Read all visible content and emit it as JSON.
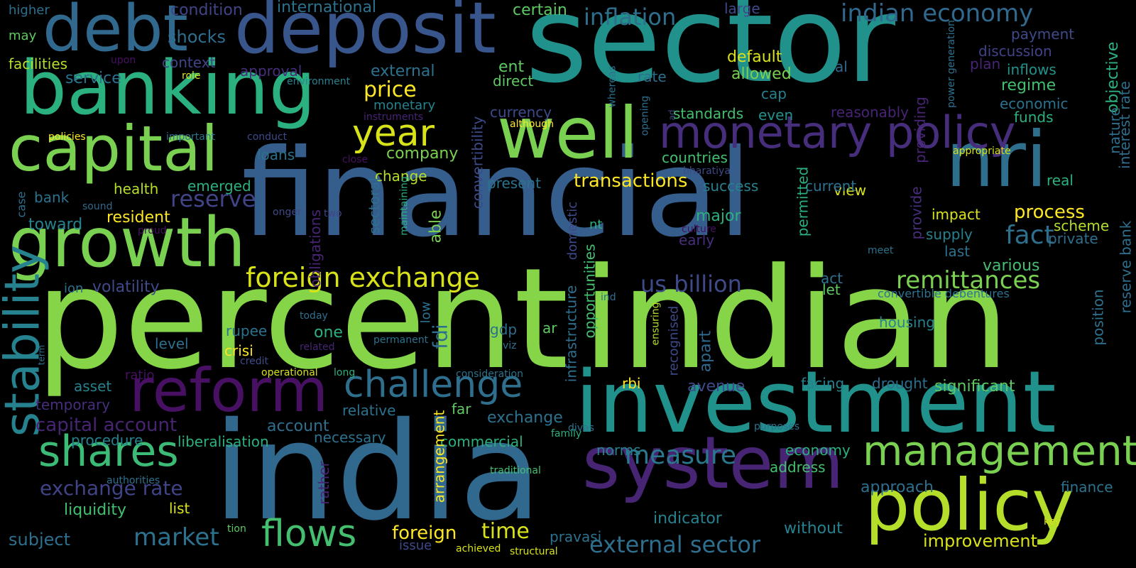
{
  "palette": {
    "background": "#000000",
    "dark_purple": "#471D6E",
    "purple": "#472E7C",
    "indigo": "#404387",
    "blue": "#355E8D",
    "steel": "#2E6F8E",
    "teal": "#21918C",
    "green_teal": "#2BB07F",
    "green": "#44BF70",
    "lime": "#7AD151",
    "yellow_green": "#B5DE2B",
    "yellow": "#FDE725"
  },
  "words": [
    {
      "text": "sector",
      "color": "#21918C",
      "orientation": "horizontal"
    },
    {
      "text": "financial",
      "color": "#355E8D",
      "orientation": "horizontal"
    },
    {
      "text": "percent",
      "color": "#86D549",
      "orientation": "horizontal"
    },
    {
      "text": "indian",
      "color": "#86D549",
      "orientation": "horizontal"
    },
    {
      "text": "india",
      "color": "#31688E",
      "orientation": "horizontal"
    },
    {
      "text": "investment",
      "color": "#21918C",
      "orientation": "horizontal"
    },
    {
      "text": "system",
      "color": "#482475",
      "orientation": "horizontal"
    },
    {
      "text": "policy",
      "color": "#B5DE2B",
      "orientation": "horizontal"
    },
    {
      "text": "deposit",
      "color": "#39568C",
      "orientation": "horizontal"
    },
    {
      "text": "banking",
      "color": "#2BB07F",
      "orientation": "horizontal"
    },
    {
      "text": "debt",
      "color": "#31688E",
      "orientation": "horizontal"
    },
    {
      "text": "growth",
      "color": "#7AD151",
      "orientation": "horizontal"
    },
    {
      "text": "capital",
      "color": "#7AD151",
      "orientation": "horizontal"
    },
    {
      "text": "well",
      "color": "#7AD151",
      "orientation": "horizontal"
    },
    {
      "text": "nri",
      "color": "#2E6F8E",
      "orientation": "horizontal"
    },
    {
      "text": "reform",
      "color": "#471063",
      "orientation": "horizontal"
    },
    {
      "text": "monetary policy",
      "color": "#472E7C",
      "orientation": "horizontal"
    },
    {
      "text": "challenge",
      "color": "#2E6F8E",
      "orientation": "horizontal"
    },
    {
      "text": "management",
      "color": "#7AD151",
      "orientation": "horizontal"
    },
    {
      "text": "stability",
      "color": "#26828E",
      "orientation": "vertical"
    },
    {
      "text": "shares",
      "color": "#3BBB75",
      "orientation": "horizontal"
    },
    {
      "text": "year",
      "color": "#D8E219",
      "orientation": "horizontal"
    },
    {
      "text": "foreign exchange",
      "color": "#D8E219",
      "orientation": "horizontal"
    },
    {
      "text": "flows",
      "color": "#44BF70",
      "orientation": "horizontal"
    },
    {
      "text": "remittances",
      "color": "#7AD151",
      "orientation": "horizontal"
    },
    {
      "text": "measure",
      "color": "#2A788E",
      "orientation": "horizontal"
    },
    {
      "text": "us billion",
      "color": "#3E4A89",
      "orientation": "horizontal"
    },
    {
      "text": "indian economy",
      "color": "#31688E",
      "orientation": "horizontal"
    },
    {
      "text": "inflation",
      "color": "#2E6F8E",
      "orientation": "horizontal"
    },
    {
      "text": "external sector",
      "color": "#2E6F8E",
      "orientation": "horizontal"
    },
    {
      "text": "exchange rate",
      "color": "#404387",
      "orientation": "horizontal"
    },
    {
      "text": "market",
      "color": "#2C728E",
      "orientation": "horizontal"
    },
    {
      "text": "capital account",
      "color": "#482475",
      "orientation": "horizontal"
    },
    {
      "text": "time",
      "color": "#D8E219",
      "orientation": "horizontal"
    },
    {
      "text": "reserve",
      "color": "#414487",
      "orientation": "horizontal"
    },
    {
      "text": "transactions",
      "color": "#FDE725",
      "orientation": "horizontal"
    },
    {
      "text": "price",
      "color": "#FDE725",
      "orientation": "horizontal"
    },
    {
      "text": "process",
      "color": "#FDE725",
      "orientation": "horizontal"
    },
    {
      "text": "fact",
      "color": "#2E6F8E",
      "orientation": "horizontal"
    },
    {
      "text": "improvement",
      "color": "#D8E219",
      "orientation": "horizontal"
    },
    {
      "text": "higher",
      "color": "#2E6F8E",
      "orientation": "horizontal"
    },
    {
      "text": "condition",
      "color": "#414487",
      "orientation": "horizontal"
    },
    {
      "text": "international",
      "color": "#2C728E",
      "orientation": "horizontal"
    },
    {
      "text": "certain",
      "color": "#5EC962",
      "orientation": "horizontal"
    },
    {
      "text": "large",
      "color": "#3E4A89",
      "orientation": "horizontal"
    },
    {
      "text": "shocks",
      "color": "#2E6F8E",
      "orientation": "horizontal"
    },
    {
      "text": "may",
      "color": "#5EC962",
      "orientation": "horizontal"
    },
    {
      "text": "facilities",
      "color": "#B5DE2B",
      "orientation": "horizontal"
    },
    {
      "text": "upon",
      "color": "#471063",
      "orientation": "horizontal"
    },
    {
      "text": "context",
      "color": "#414487",
      "orientation": "horizontal"
    },
    {
      "text": "approval",
      "color": "#472E7C",
      "orientation": "horizontal"
    },
    {
      "text": "external",
      "color": "#2C728E",
      "orientation": "horizontal"
    },
    {
      "text": "ent",
      "color": "#5EC962",
      "orientation": "horizontal"
    },
    {
      "text": "direct",
      "color": "#5EC962",
      "orientation": "horizontal"
    },
    {
      "text": "default",
      "color": "#D8E219",
      "orientation": "horizontal"
    },
    {
      "text": "allowed",
      "color": "#7AD151",
      "orientation": "horizontal"
    },
    {
      "text": "cap",
      "color": "#26828E",
      "orientation": "horizontal"
    },
    {
      "text": "al",
      "color": "#31688E",
      "orientation": "horizontal"
    },
    {
      "text": "payment",
      "color": "#3E4A89",
      "orientation": "horizontal"
    },
    {
      "text": "discussion",
      "color": "#404387",
      "orientation": "horizontal"
    },
    {
      "text": "plan",
      "color": "#482475",
      "orientation": "horizontal"
    },
    {
      "text": "inflows",
      "color": "#21918C",
      "orientation": "horizontal"
    },
    {
      "text": "regime",
      "color": "#44BF70",
      "orientation": "horizontal"
    },
    {
      "text": "economic",
      "color": "#2C728E",
      "orientation": "horizontal"
    },
    {
      "text": "funds",
      "color": "#2BB07F",
      "orientation": "horizontal"
    },
    {
      "text": "service",
      "color": "#2C728E",
      "orientation": "horizontal"
    },
    {
      "text": "role",
      "color": "#D8E219",
      "orientation": "horizontal"
    },
    {
      "text": "environment",
      "color": "#26828E",
      "orientation": "horizontal"
    },
    {
      "text": "monetary",
      "color": "#26828E",
      "orientation": "horizontal"
    },
    {
      "text": "instruments",
      "color": "#482475",
      "orientation": "horizontal"
    },
    {
      "text": "although",
      "color": "#FDE725",
      "orientation": "horizontal"
    },
    {
      "text": "currency",
      "color": "#3E4A89",
      "orientation": "horizontal"
    },
    {
      "text": "rate",
      "color": "#2E6F8E",
      "orientation": "horizontal"
    },
    {
      "text": "ad",
      "color": "#3E4A89",
      "orientation": "vertical"
    },
    {
      "text": "standards",
      "color": "#44BF70",
      "orientation": "horizontal"
    },
    {
      "text": "even",
      "color": "#21918C",
      "orientation": "horizontal"
    },
    {
      "text": "reasonably",
      "color": "#482475",
      "orientation": "horizontal"
    },
    {
      "text": "appropriate",
      "color": "#D8E219",
      "orientation": "horizontal"
    },
    {
      "text": "policies",
      "color": "#FDE725",
      "orientation": "horizontal"
    },
    {
      "text": "important",
      "color": "#2C728E",
      "orientation": "horizontal"
    },
    {
      "text": "conduct",
      "color": "#3E4A89",
      "orientation": "horizontal"
    },
    {
      "text": "company",
      "color": "#7AD151",
      "orientation": "horizontal"
    },
    {
      "text": "loans",
      "color": "#2C728E",
      "orientation": "horizontal"
    },
    {
      "text": "close",
      "color": "#471063",
      "orientation": "horizontal"
    },
    {
      "text": "change",
      "color": "#B5DE2B",
      "orientation": "horizontal"
    },
    {
      "text": "countries",
      "color": "#44BF70",
      "orientation": "horizontal"
    },
    {
      "text": "bharatiya",
      "color": "#3E4A89",
      "orientation": "horizontal"
    },
    {
      "text": "health",
      "color": "#B5DE2B",
      "orientation": "horizontal"
    },
    {
      "text": "emerged",
      "color": "#2BB07F",
      "orientation": "horizontal"
    },
    {
      "text": "present",
      "color": "#2C728E",
      "orientation": "horizontal"
    },
    {
      "text": "view",
      "color": "#D8E219",
      "orientation": "horizontal"
    },
    {
      "text": "success",
      "color": "#26828E",
      "orientation": "horizontal"
    },
    {
      "text": "current",
      "color": "#2C728E",
      "orientation": "horizontal"
    },
    {
      "text": "real",
      "color": "#2BB07F",
      "orientation": "horizontal"
    },
    {
      "text": "bank",
      "color": "#2C728E",
      "orientation": "horizontal"
    },
    {
      "text": "sound",
      "color": "#31688E",
      "orientation": "horizontal"
    },
    {
      "text": "resident",
      "color": "#FDE725",
      "orientation": "horizontal"
    },
    {
      "text": "toward",
      "color": "#26828E",
      "orientation": "horizontal"
    },
    {
      "text": "onger",
      "color": "#3E4A89",
      "orientation": "horizontal"
    },
    {
      "text": "two",
      "color": "#414487",
      "orientation": "horizontal"
    },
    {
      "text": "proud",
      "color": "#471063",
      "orientation": "horizontal"
    },
    {
      "text": "major",
      "color": "#2BB07F",
      "orientation": "horizontal"
    },
    {
      "text": "nt",
      "color": "#2BB07F",
      "orientation": "horizontal"
    },
    {
      "text": "culture",
      "color": "#471063",
      "orientation": "horizontal"
    },
    {
      "text": "early",
      "color": "#472E7C",
      "orientation": "horizontal"
    },
    {
      "text": "impact",
      "color": "#D8E219",
      "orientation": "horizontal"
    },
    {
      "text": "supply",
      "color": "#26828E",
      "orientation": "horizontal"
    },
    {
      "text": "scheme",
      "color": "#B5DE2B",
      "orientation": "horizontal"
    },
    {
      "text": "private",
      "color": "#2E6F8E",
      "orientation": "horizontal"
    },
    {
      "text": "last",
      "color": "#2C728E",
      "orientation": "horizontal"
    },
    {
      "text": "meet",
      "color": "#2C728E",
      "orientation": "horizontal"
    },
    {
      "text": "various",
      "color": "#44BF70",
      "orientation": "horizontal"
    },
    {
      "text": "act",
      "color": "#2C728E",
      "orientation": "horizontal"
    },
    {
      "text": "let",
      "color": "#5EC962",
      "orientation": "horizontal"
    },
    {
      "text": "convertible debentures",
      "color": "#2C728E",
      "orientation": "horizontal"
    },
    {
      "text": "ion",
      "color": "#2C728E",
      "orientation": "horizontal"
    },
    {
      "text": "volatility",
      "color": "#3E4A89",
      "orientation": "horizontal"
    },
    {
      "text": "ind",
      "color": "#2E6F8E",
      "orientation": "horizontal"
    },
    {
      "text": "today",
      "color": "#2E6F8E",
      "orientation": "horizontal"
    },
    {
      "text": "rupee",
      "color": "#2C728E",
      "orientation": "horizontal"
    },
    {
      "text": "one",
      "color": "#2BB07F",
      "orientation": "horizontal"
    },
    {
      "text": "gdp",
      "color": "#2E6F8E",
      "orientation": "horizontal"
    },
    {
      "text": "ar",
      "color": "#5EC962",
      "orientation": "horizontal"
    },
    {
      "text": "level",
      "color": "#2E6F8E",
      "orientation": "horizontal"
    },
    {
      "text": "crisi",
      "color": "#FDE725",
      "orientation": "horizontal"
    },
    {
      "text": "related",
      "color": "#482475",
      "orientation": "horizontal"
    },
    {
      "text": "permanent",
      "color": "#2C728E",
      "orientation": "horizontal"
    },
    {
      "text": "viz",
      "color": "#2C728E",
      "orientation": "horizontal"
    },
    {
      "text": "housing",
      "color": "#26828E",
      "orientation": "horizontal"
    },
    {
      "text": "credit",
      "color": "#3E4A89",
      "orientation": "horizontal"
    },
    {
      "text": "ratio",
      "color": "#471063",
      "orientation": "horizontal"
    },
    {
      "text": "operational",
      "color": "#D8E219",
      "orientation": "horizontal"
    },
    {
      "text": "long",
      "color": "#2BB07F",
      "orientation": "horizontal"
    },
    {
      "text": "consideration",
      "color": "#2C728E",
      "orientation": "horizontal"
    },
    {
      "text": "rbi",
      "color": "#FDE725",
      "orientation": "horizontal"
    },
    {
      "text": "avenue",
      "color": "#3E4A89",
      "orientation": "horizontal"
    },
    {
      "text": "facing",
      "color": "#26828E",
      "orientation": "horizontal"
    },
    {
      "text": "drought",
      "color": "#2E6F8E",
      "orientation": "horizontal"
    },
    {
      "text": "significant",
      "color": "#5EC962",
      "orientation": "horizontal"
    },
    {
      "text": "asset",
      "color": "#26828E",
      "orientation": "horizontal"
    },
    {
      "text": "temporary",
      "color": "#472E7C",
      "orientation": "horizontal"
    },
    {
      "text": "relative",
      "color": "#2C728E",
      "orientation": "horizontal"
    },
    {
      "text": "far",
      "color": "#5EC962",
      "orientation": "horizontal"
    },
    {
      "text": "exchange",
      "color": "#2C728E",
      "orientation": "horizontal"
    },
    {
      "text": "divas",
      "color": "#2C728E",
      "orientation": "horizontal"
    },
    {
      "text": "family",
      "color": "#2BB07F",
      "orientation": "horizontal"
    },
    {
      "text": "purposes",
      "color": "#2E6F8E",
      "orientation": "horizontal"
    },
    {
      "text": "account",
      "color": "#2E6F8E",
      "orientation": "horizontal"
    },
    {
      "text": "necessary",
      "color": "#2C728E",
      "orientation": "horizontal"
    },
    {
      "text": "procedure",
      "color": "#26828E",
      "orientation": "horizontal"
    },
    {
      "text": "liberalisation",
      "color": "#2BB07F",
      "orientation": "horizontal"
    },
    {
      "text": "commercial",
      "color": "#2BB07F",
      "orientation": "horizontal"
    },
    {
      "text": "norms",
      "color": "#26828E",
      "orientation": "horizontal"
    },
    {
      "text": "economy",
      "color": "#2BB07F",
      "orientation": "horizontal"
    },
    {
      "text": "address",
      "color": "#44BF70",
      "orientation": "horizontal"
    },
    {
      "text": "ir",
      "color": "#2E6F8E",
      "orientation": "horizontal"
    },
    {
      "text": "traditional",
      "color": "#44BF70",
      "orientation": "horizontal"
    },
    {
      "text": "authorities",
      "color": "#2C728E",
      "orientation": "horizontal"
    },
    {
      "text": "approach",
      "color": "#2E6F8E",
      "orientation": "horizontal"
    },
    {
      "text": "finance",
      "color": "#2C728E",
      "orientation": "horizontal"
    },
    {
      "text": "liquidity",
      "color": "#44BF70",
      "orientation": "horizontal"
    },
    {
      "text": "list",
      "color": "#D8E219",
      "orientation": "horizontal"
    },
    {
      "text": "tion",
      "color": "#5EC962",
      "orientation": "horizontal"
    },
    {
      "text": "key",
      "color": "#D8E219",
      "orientation": "horizontal"
    },
    {
      "text": "subject",
      "color": "#2E6F8E",
      "orientation": "horizontal"
    },
    {
      "text": "foreign",
      "color": "#FDE725",
      "orientation": "horizontal"
    },
    {
      "text": "indicator",
      "color": "#26828E",
      "orientation": "horizontal"
    },
    {
      "text": "pravasi",
      "color": "#2C728E",
      "orientation": "horizontal"
    },
    {
      "text": "without",
      "color": "#26828E",
      "orientation": "horizontal"
    },
    {
      "text": "issue",
      "color": "#3E4A89",
      "orientation": "horizontal"
    },
    {
      "text": "achieved",
      "color": "#D8E219",
      "orientation": "horizontal"
    },
    {
      "text": "structural",
      "color": "#D8E219",
      "orientation": "horizontal"
    },
    {
      "text": "convertibility",
      "color": "#3E4A89",
      "orientation": "vertical"
    },
    {
      "text": "able",
      "color": "#7AD151",
      "orientation": "vertical"
    },
    {
      "text": "fdi",
      "color": "#2E6F8E",
      "orientation": "vertical"
    },
    {
      "text": "arrangement",
      "color": "#FDE725",
      "orientation": "vertical"
    },
    {
      "text": "low",
      "color": "#2C728E",
      "orientation": "vertical"
    },
    {
      "text": "sectoral",
      "color": "#2E6F8E",
      "orientation": "vertical"
    },
    {
      "text": "obligations",
      "color": "#482475",
      "orientation": "vertical"
    },
    {
      "text": "maintaining",
      "color": "#2BB07F",
      "orientation": "vertical"
    },
    {
      "text": "domestic",
      "color": "#3E4A89",
      "orientation": "vertical"
    },
    {
      "text": "opportunities",
      "color": "#44BF70",
      "orientation": "vertical"
    },
    {
      "text": "infrastructure",
      "color": "#2E6F8E",
      "orientation": "vertical"
    },
    {
      "text": "recognised",
      "color": "#3E4A89",
      "orientation": "vertical"
    },
    {
      "text": "apart",
      "color": "#31688E",
      "orientation": "vertical"
    },
    {
      "text": "ensuring",
      "color": "#B5DE2B",
      "orientation": "vertical"
    },
    {
      "text": "permitted",
      "color": "#2BB07F",
      "orientation": "vertical"
    },
    {
      "text": "providing",
      "color": "#482475",
      "orientation": "vertical"
    },
    {
      "text": "provide",
      "color": "#472E7C",
      "orientation": "vertical"
    },
    {
      "text": "objective",
      "color": "#2BB07F",
      "orientation": "vertical"
    },
    {
      "text": "nature",
      "color": "#2E6F8E",
      "orientation": "vertical"
    },
    {
      "text": "interest rate",
      "color": "#2E6F8E",
      "orientation": "vertical"
    },
    {
      "text": "reserve bank",
      "color": "#2E6F8E",
      "orientation": "vertical"
    },
    {
      "text": "position",
      "color": "#2C728E",
      "orientation": "vertical"
    },
    {
      "text": "power generation",
      "color": "#2C728E",
      "orientation": "vertical"
    },
    {
      "text": "whereas",
      "color": "#2C728E",
      "orientation": "vertical"
    },
    {
      "text": "opening",
      "color": "#2E6F8E",
      "orientation": "vertical"
    },
    {
      "text": "case",
      "color": "#2E6F8E",
      "orientation": "vertical"
    },
    {
      "text": "term",
      "color": "#2E6F8E",
      "orientation": "vertical"
    },
    {
      "text": "rather",
      "color": "#482475",
      "orientation": "vertical"
    }
  ]
}
